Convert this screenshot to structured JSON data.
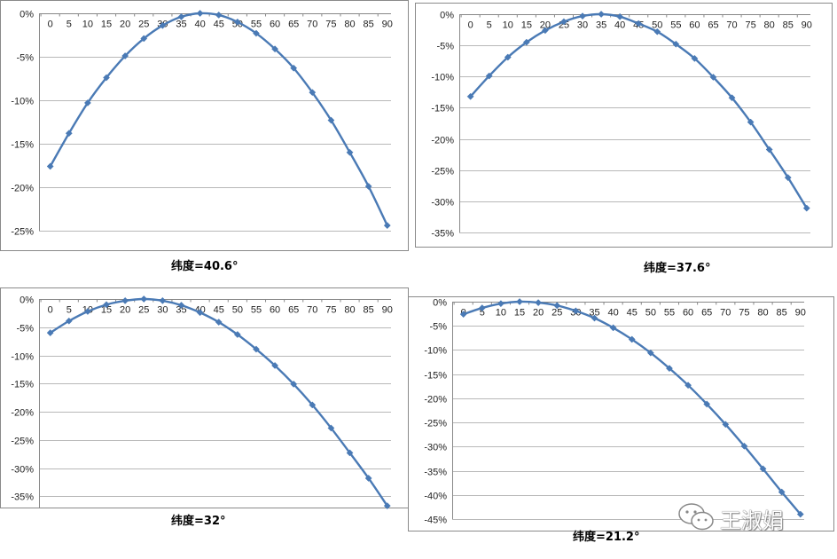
{
  "colors": {
    "line": "#4a7ab5",
    "marker": "#4a7ab5",
    "grid": "#b8b8b8",
    "border": "#8a8a8a",
    "text": "#222222"
  },
  "watermark": {
    "text": "王淑娟",
    "icon": "wechat-icon"
  },
  "chart_data": [
    {
      "type": "line",
      "title": "纬度=40.6°",
      "x": [
        0,
        5,
        10,
        15,
        20,
        25,
        30,
        35,
        40,
        45,
        50,
        55,
        60,
        65,
        70,
        75,
        80,
        85,
        90
      ],
      "y_ticks": [
        "0%",
        "-5%",
        "-10%",
        "-15%",
        "-20%",
        "-25%"
      ],
      "ylim": [
        -25,
        0
      ],
      "x_axis_position": "top",
      "grid": true,
      "series": [
        {
          "values": [
            -17.6,
            -13.8,
            -10.3,
            -7.4,
            -4.9,
            -2.9,
            -1.4,
            -0.4,
            0,
            -0.2,
            -1.0,
            -2.3,
            -4.1,
            -6.3,
            -9.1,
            -12.3,
            -16.0,
            -19.9,
            -24.4
          ]
        }
      ]
    },
    {
      "type": "line",
      "title": "纬度=37.6°",
      "x": [
        0,
        5,
        10,
        15,
        20,
        25,
        30,
        35,
        40,
        45,
        50,
        55,
        60,
        65,
        70,
        75,
        80,
        85,
        90
      ],
      "y_ticks": [
        "0%",
        "-5%",
        "-10%",
        "-15%",
        "-20%",
        "-25%",
        "-30%",
        "-35%"
      ],
      "ylim": [
        -35,
        0
      ],
      "x_axis_position": "top",
      "grid": true,
      "series": [
        {
          "values": [
            -13.2,
            -9.9,
            -6.9,
            -4.5,
            -2.6,
            -1.2,
            -0.3,
            0,
            -0.4,
            -1.5,
            -2.8,
            -4.8,
            -7.1,
            -10.1,
            -13.4,
            -17.3,
            -21.7,
            -26.2,
            -31.1
          ]
        }
      ]
    },
    {
      "type": "line",
      "title": "纬度=32°",
      "x": [
        0,
        5,
        10,
        15,
        20,
        25,
        30,
        35,
        40,
        45,
        50,
        55,
        60,
        65,
        70,
        75,
        80,
        85,
        90
      ],
      "y_ticks": [
        "0%",
        "-5%",
        "-10%",
        "-15%",
        "-20%",
        "-25%",
        "-30%",
        "-35%"
      ],
      "ylim": [
        -37,
        0
      ],
      "x_axis_position": "top",
      "grid": true,
      "series": [
        {
          "values": [
            -6.0,
            -3.9,
            -2.2,
            -1.0,
            -0.3,
            0,
            -0.3,
            -1.1,
            -2.4,
            -4.1,
            -6.3,
            -8.9,
            -11.8,
            -15.1,
            -18.8,
            -22.9,
            -27.3,
            -31.8,
            -36.7
          ]
        }
      ]
    },
    {
      "type": "line",
      "title": "纬度=21.2°",
      "x": [
        0,
        5,
        10,
        15,
        20,
        25,
        30,
        35,
        40,
        45,
        50,
        55,
        60,
        65,
        70,
        75,
        80,
        85,
        90
      ],
      "y_ticks": [
        "0%",
        "-5%",
        "-10%",
        "-15%",
        "-20%",
        "-25%",
        "-30%",
        "-35%",
        "-40%",
        "-45%"
      ],
      "ylim": [
        -45,
        0
      ],
      "x_axis_position": "top",
      "grid": true,
      "series": [
        {
          "values": [
            -2.6,
            -1.3,
            -0.4,
            0,
            -0.2,
            -0.8,
            -1.9,
            -3.4,
            -5.4,
            -7.8,
            -10.6,
            -13.8,
            -17.3,
            -21.2,
            -25.4,
            -29.9,
            -34.6,
            -39.4,
            -44.0
          ]
        }
      ]
    }
  ]
}
